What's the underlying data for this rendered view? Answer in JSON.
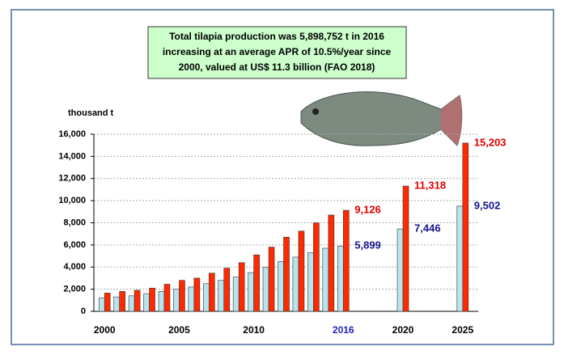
{
  "chart_data": {
    "type": "bar",
    "annotation": [
      "Total tilapia production was 5,898,752 t in 2016",
      "increasing at an average APR of 10.5%/year since",
      "2000, valued at US$ 11.3 billion (FAO 2018)"
    ],
    "ylabel": "thousand t",
    "categories": [
      "2000",
      null,
      null,
      null,
      null,
      "2005",
      null,
      null,
      null,
      null,
      "2010",
      null,
      null,
      null,
      null,
      null,
      "2016",
      null,
      null,
      null,
      "2020",
      null,
      null,
      null,
      "2025"
    ],
    "highlight_category": "2016",
    "highlight_color": "#1f1fbf",
    "series": [
      {
        "color": "#b8e4f0",
        "label_color": "#14148c",
        "values": [
          1200,
          1300,
          1400,
          1600,
          1800,
          2000,
          2200,
          2500,
          2800,
          3100,
          3500,
          4000,
          4500,
          4900,
          5300,
          5700,
          5899,
          null,
          null,
          null,
          7446,
          null,
          null,
          null,
          9502
        ],
        "value_labels": [
          null,
          null,
          null,
          null,
          null,
          null,
          null,
          null,
          null,
          null,
          null,
          null,
          null,
          null,
          null,
          null,
          "5,899",
          null,
          null,
          null,
          "7,446",
          null,
          null,
          null,
          "9,502"
        ]
      },
      {
        "color": "#ff2a00",
        "label_color": "#e00000",
        "values": [
          1650,
          1800,
          1900,
          2100,
          2450,
          2800,
          3000,
          3450,
          3900,
          4400,
          5100,
          5800,
          6700,
          7250,
          8000,
          8700,
          9126,
          null,
          null,
          null,
          11318,
          null,
          null,
          null,
          15203
        ],
        "value_labels": [
          null,
          null,
          null,
          null,
          null,
          null,
          null,
          null,
          null,
          null,
          null,
          null,
          null,
          null,
          null,
          null,
          "9,126",
          null,
          null,
          null,
          "11,318",
          null,
          null,
          null,
          "15,203"
        ]
      }
    ],
    "ylim": [
      0,
      16000
    ],
    "yticks": [
      0,
      {
        "value": 2000,
        "label": "2,000"
      },
      {
        "value": 4000,
        "label": "4,000"
      },
      {
        "value": 6000,
        "label": "6,000"
      },
      {
        "value": 8000,
        "label": "8,000"
      },
      {
        "value": 10000,
        "label": "10,000"
      },
      {
        "value": 12000,
        "label": "12,000"
      },
      {
        "value": 14000,
        "label": "14,000"
      },
      {
        "value": 16000,
        "label": "16,000"
      }
    ],
    "grid": true
  }
}
